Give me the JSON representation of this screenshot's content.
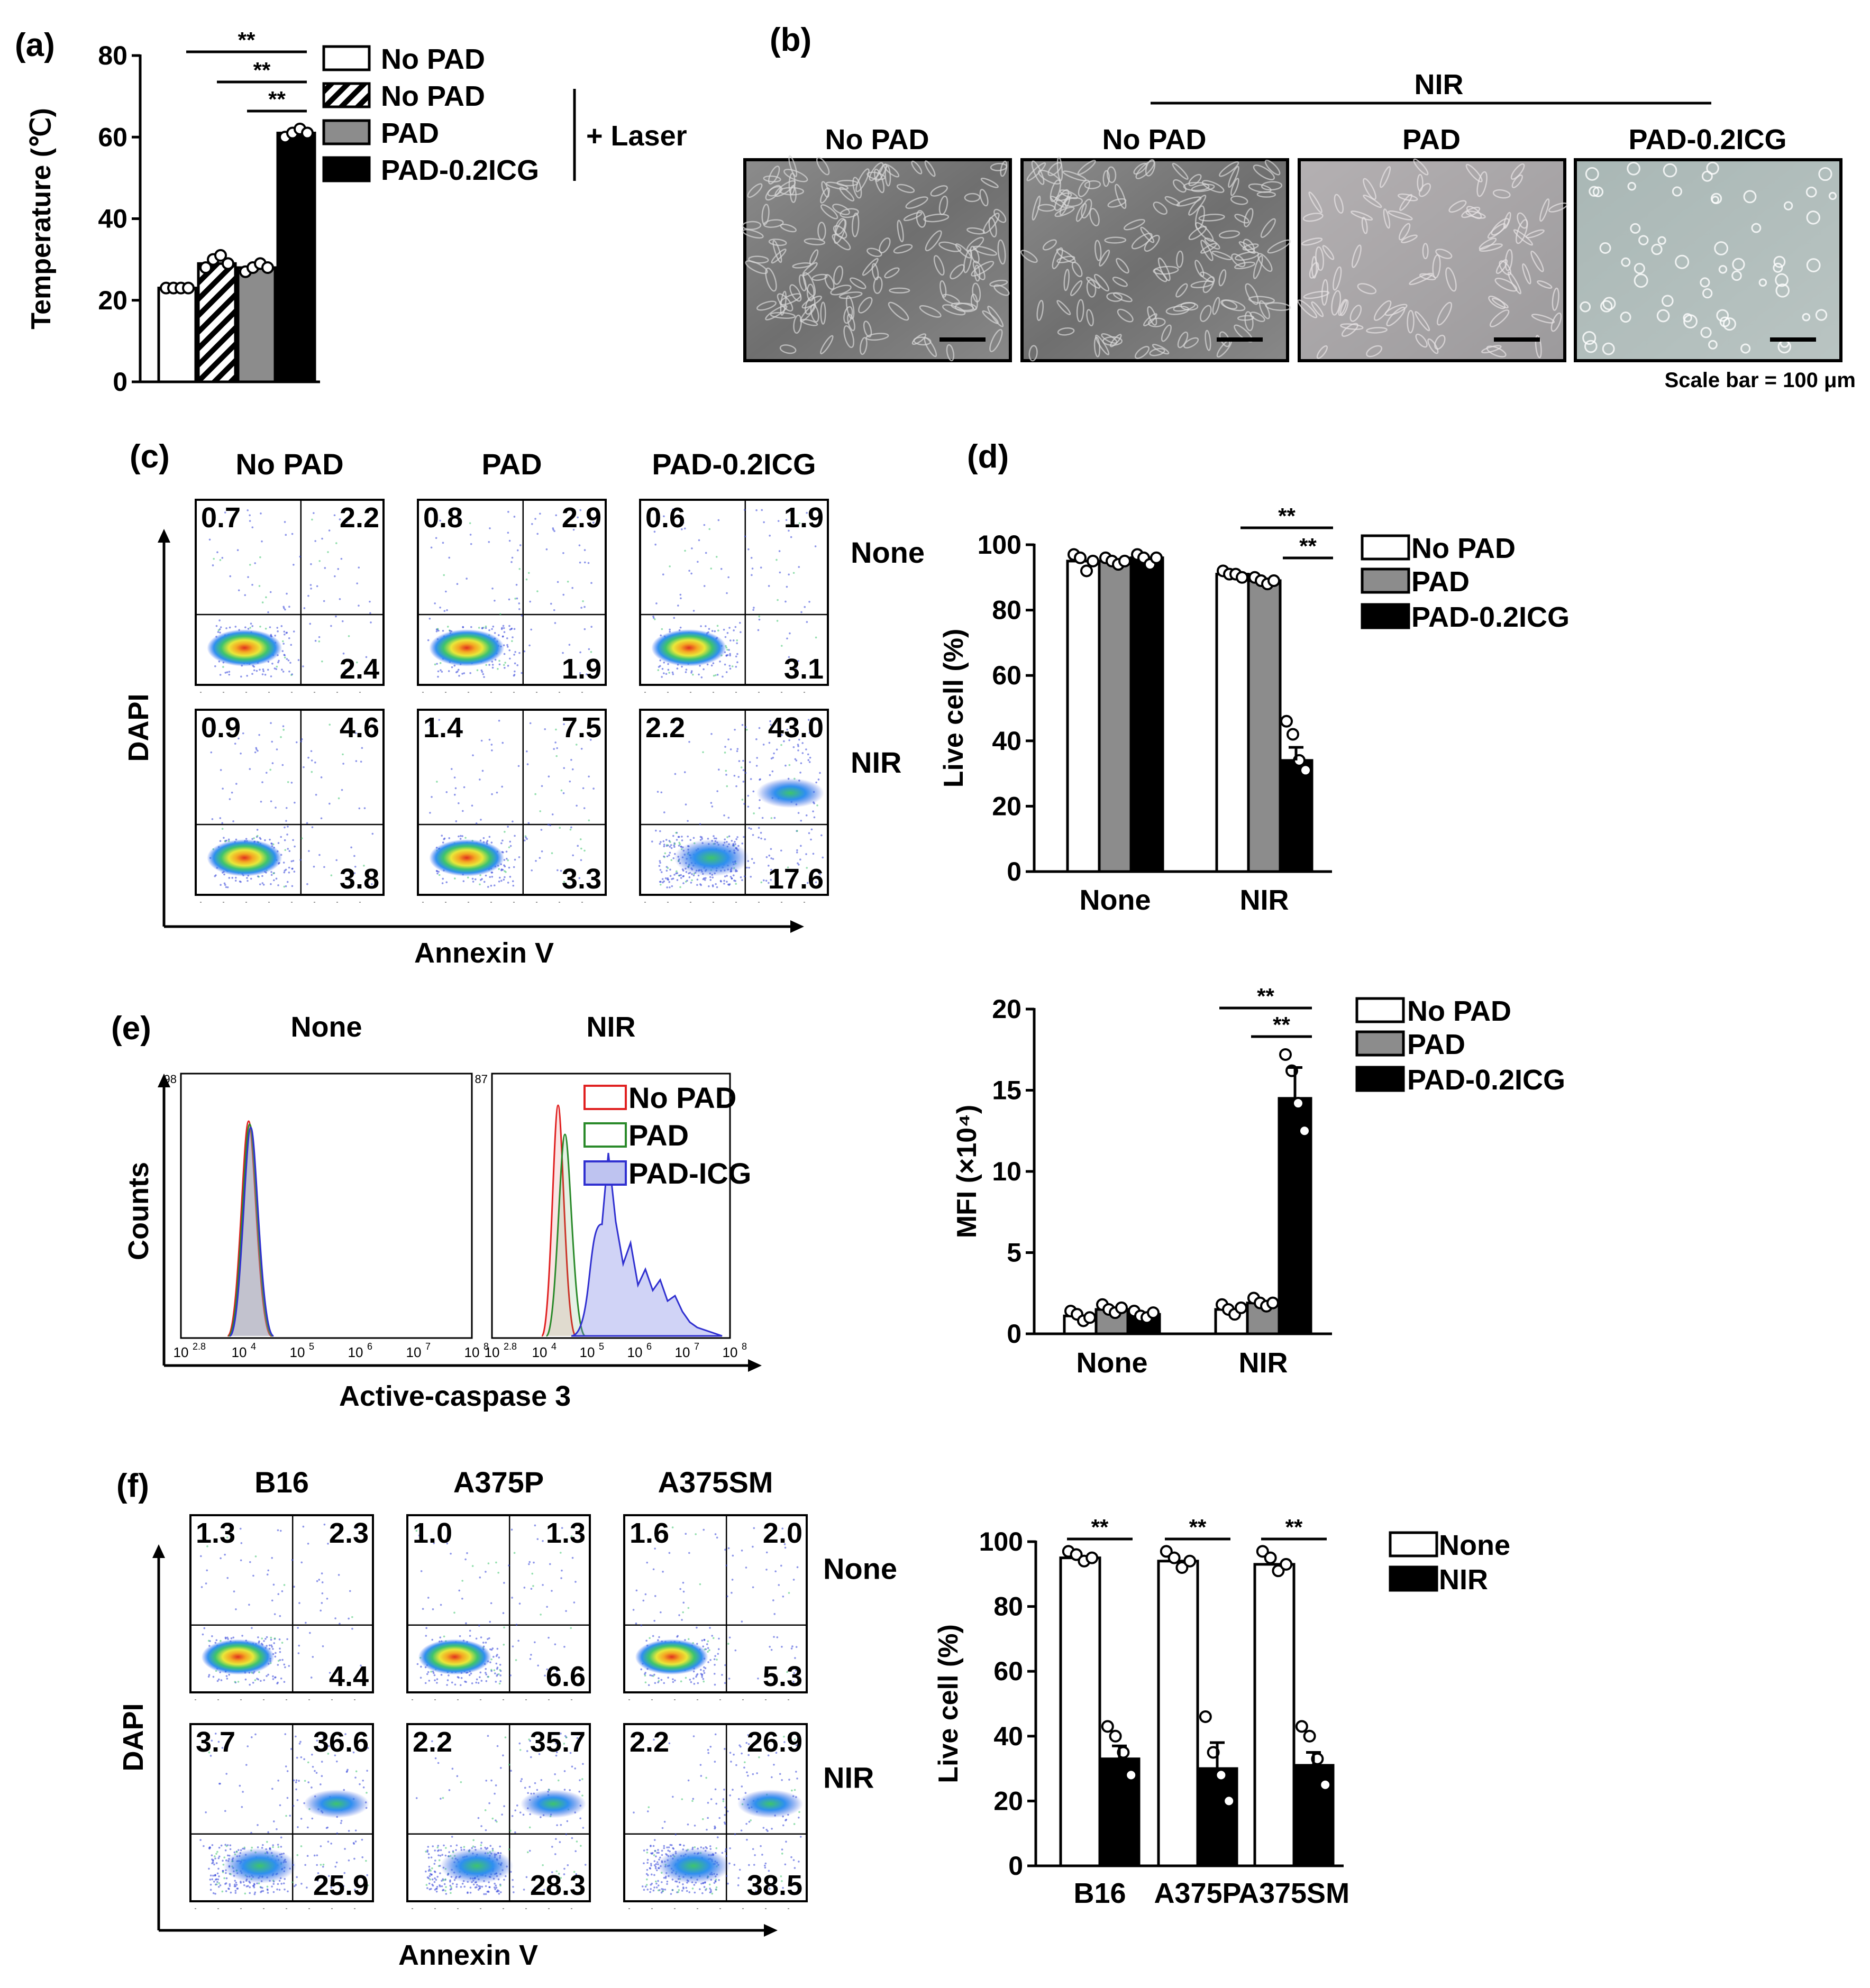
{
  "chart_data": [
    {
      "panel": "(a)",
      "type": "bar",
      "ylabel": "Temperature (℃)",
      "ylim": [
        0,
        80
      ],
      "yticks": [
        "0",
        "20",
        "40",
        "60",
        "80"
      ],
      "categories": [
        "No PAD",
        "No PAD",
        "PAD",
        "PAD-0.2ICG"
      ],
      "values": [
        23,
        29,
        28,
        61
      ],
      "points": [
        [
          23,
          23,
          23,
          23
        ],
        [
          28,
          30,
          31,
          29
        ],
        [
          27,
          28,
          29,
          28
        ],
        [
          60,
          61,
          62,
          61
        ]
      ],
      "fills": [
        "white",
        "hatch",
        "gray",
        "black"
      ],
      "legend": [
        "No PAD",
        "No PAD",
        "PAD",
        "PAD-0.2ICG"
      ],
      "legend_group_label": "+ Laser",
      "significance": [
        "**",
        "**",
        "**"
      ]
    },
    {
      "panel": "(b)",
      "type": "image",
      "group_label": "NIR",
      "labels": [
        "No PAD",
        "No PAD",
        "PAD",
        "PAD-0.2ICG"
      ],
      "scale_bar": "Scale bar = 100 μm"
    },
    {
      "panel": "(c)",
      "type": "scatter",
      "xlabel": "Annexin V",
      "ylabel": "DAPI",
      "columns": [
        "No PAD",
        "PAD",
        "PAD-0.2ICG"
      ],
      "rows": [
        "None",
        "NIR"
      ],
      "quadrants": [
        [
          [
            "0.7",
            "2.2",
            "2.4"
          ],
          [
            "0.8",
            "2.9",
            "1.9"
          ],
          [
            "0.6",
            "1.9",
            "3.1"
          ]
        ],
        [
          [
            "0.9",
            "4.6",
            "3.8"
          ],
          [
            "1.4",
            "7.5",
            "3.3"
          ],
          [
            "2.2",
            "43.0",
            "17.6"
          ]
        ]
      ]
    },
    {
      "panel": "(d)",
      "type": "bar",
      "ylabel": "Live cell (%)",
      "ylim": [
        0,
        100
      ],
      "yticks": [
        "0",
        "20",
        "40",
        "60",
        "80",
        "100"
      ],
      "categories": [
        "None",
        "NIR"
      ],
      "series": [
        {
          "name": "No PAD",
          "values": [
            95,
            91
          ],
          "points": [
            [
              97,
              96,
              92,
              95
            ],
            [
              92,
              91,
              91,
              90
            ]
          ]
        },
        {
          "name": "PAD",
          "values": [
            95,
            89
          ],
          "points": [
            [
              96,
              95,
              94,
              95
            ],
            [
              90,
              89,
              88,
              89
            ]
          ]
        },
        {
          "name": "PAD-0.2ICG",
          "values": [
            96,
            34
          ],
          "points": [
            [
              97,
              96,
              94,
              96
            ],
            [
              46,
              42,
              34,
              31
            ]
          ]
        }
      ],
      "significance": [
        "**",
        "**"
      ]
    },
    {
      "panel": "(e)",
      "type": "area",
      "xlabel": "Active-caspase 3",
      "ylabel": "Counts",
      "subtitles": [
        "None",
        "NIR"
      ],
      "xticks": [
        "2.8",
        "4",
        "5",
        "6",
        "7",
        "8"
      ],
      "legend": [
        "No PAD",
        "PAD",
        "PAD-ICG"
      ],
      "ymax_labels": [
        "98",
        "87"
      ]
    },
    {
      "panel": "(e) MFI",
      "type": "bar",
      "ylabel": "MFI (×10⁴)",
      "ylim": [
        0,
        20
      ],
      "yticks": [
        "0",
        "5",
        "10",
        "15",
        "20"
      ],
      "categories": [
        "None",
        "NIR"
      ],
      "series": [
        {
          "name": "No PAD",
          "values": [
            1.1,
            1.5
          ],
          "points": [
            [
              1.4,
              1.2,
              0.8,
              1.0
            ],
            [
              1.8,
              1.5,
              1.2,
              1.6
            ]
          ]
        },
        {
          "name": "PAD",
          "values": [
            1.5,
            1.9
          ],
          "points": [
            [
              1.8,
              1.5,
              1.3,
              1.6
            ],
            [
              2.2,
              1.9,
              1.7,
              1.9
            ]
          ]
        },
        {
          "name": "PAD-0.2ICG",
          "values": [
            1.2,
            14.5
          ],
          "points": [
            [
              1.4,
              1.1,
              1.0,
              1.3
            ],
            [
              17.2,
              16.2,
              14.2,
              12.5
            ]
          ]
        }
      ],
      "significance": [
        "**",
        "**"
      ]
    },
    {
      "panel": "(f)",
      "type": "scatter",
      "xlabel": "Annexin V",
      "ylabel": "DAPI",
      "columns": [
        "B16",
        "A375P",
        "A375SM"
      ],
      "rows": [
        "None",
        "NIR"
      ],
      "quadrants": [
        [
          [
            "1.3",
            "2.3",
            "4.4"
          ],
          [
            "1.0",
            "1.3",
            "6.6"
          ],
          [
            "1.6",
            "2.0",
            "5.3"
          ]
        ],
        [
          [
            "3.7",
            "36.6",
            "25.9"
          ],
          [
            "2.2",
            "35.7",
            "28.3"
          ],
          [
            "2.2",
            "26.9",
            "38.5"
          ]
        ]
      ]
    },
    {
      "panel": "(f) Live cell",
      "type": "bar",
      "ylabel": "Live cell (%)",
      "ylim": [
        0,
        100
      ],
      "yticks": [
        "0",
        "20",
        "40",
        "60",
        "80",
        "100"
      ],
      "categories": [
        "B16",
        "A375P",
        "A375SM"
      ],
      "series": [
        {
          "name": "None",
          "values": [
            95,
            94,
            93
          ],
          "points": [
            [
              97,
              96,
              94,
              95
            ],
            [
              97,
              95,
              92,
              94
            ],
            [
              97,
              95,
              91,
              93
            ]
          ]
        },
        {
          "name": "NIR",
          "values": [
            33,
            30,
            31
          ],
          "points": [
            [
              43,
              40,
              35,
              28
            ],
            [
              46,
              35,
              28,
              20
            ],
            [
              43,
              40,
              33,
              25
            ]
          ]
        }
      ],
      "significance": [
        "**",
        "**",
        "**"
      ]
    }
  ]
}
